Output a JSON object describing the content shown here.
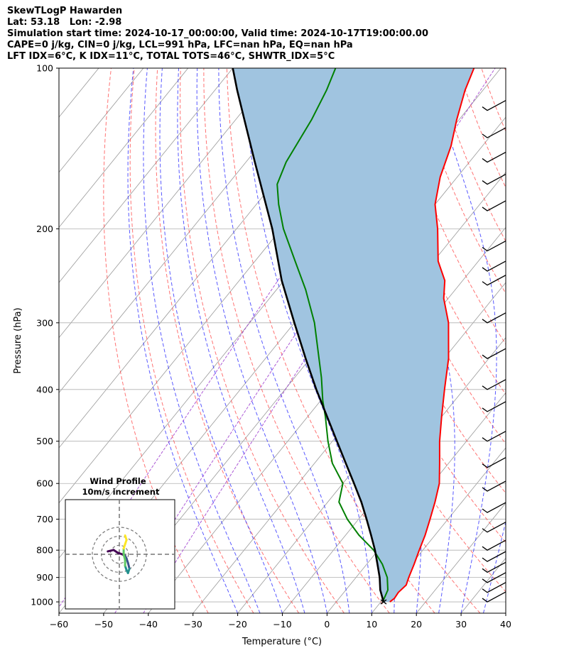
{
  "header": {
    "line1": "SkewTLogP Hawarden",
    "line2": "Lat: 53.18   Lon: -2.98",
    "line3": "Simulation start time: 2024-10-17_00:00:00, Valid time: 2024-10-17T19:00:00.00",
    "line4": "CAPE=0 j/kg, CIN=0 j/kg, LCL=991 hPa, LFC=nan hPa, EQ=nan hPa",
    "line5": "LFT IDX=6°C, K IDX=11°C, TOTAL TOTS=46°C, SHWTR_IDX=5°C"
  },
  "chart_data": {
    "type": "line",
    "title": "",
    "xlabel": "Temperature (°C)",
    "ylabel": "Pressure (hPa)",
    "xlim": [
      -60,
      40
    ],
    "ylim": [
      1050,
      100
    ],
    "y_scale": "log",
    "skew": true,
    "grid": true,
    "x_ticks": [
      "−60",
      "−50",
      "−40",
      "−30",
      "−20",
      "−10",
      "0",
      "10",
      "20",
      "30",
      "40"
    ],
    "y_ticks": [
      "1000",
      "900",
      "800",
      "700",
      "600",
      "500",
      "400",
      "300",
      "200",
      "100"
    ],
    "colors": {
      "temperature": "#ff0000",
      "dewpoint": "#008000",
      "parcel": "#000000",
      "shade": "#a0c4e0",
      "dry_adiabats": "#ff4444",
      "moist_adiabats": "#2222ff",
      "mixing_ratio": "#9933cc",
      "isotherms": "#999999"
    },
    "series": [
      {
        "key": "temperature",
        "points": [
          [
            1000,
            12
          ],
          [
            985,
            12.4
          ],
          [
            960,
            12.2
          ],
          [
            930,
            12.6
          ],
          [
            900,
            11.8
          ],
          [
            850,
            10.6
          ],
          [
            800,
            9.2
          ],
          [
            750,
            7.8
          ],
          [
            700,
            6.0
          ],
          [
            650,
            4.0
          ],
          [
            600,
            1.6
          ],
          [
            550,
            -2.0
          ],
          [
            500,
            -6.0
          ],
          [
            450,
            -10.0
          ],
          [
            400,
            -14.3
          ],
          [
            350,
            -19.0
          ],
          [
            300,
            -25.5
          ],
          [
            270,
            -31.0
          ],
          [
            250,
            -34.0
          ],
          [
            230,
            -39.0
          ],
          [
            200,
            -45.0
          ],
          [
            180,
            -50.0
          ],
          [
            160,
            -53.8
          ],
          [
            140,
            -57.0
          ],
          [
            125,
            -60.5
          ],
          [
            110,
            -64.0
          ],
          [
            100,
            -66.0
          ]
        ]
      },
      {
        "key": "dewpoint",
        "points": [
          [
            1000,
            10.4
          ],
          [
            950,
            9.4
          ],
          [
            900,
            7.0
          ],
          [
            850,
            3.5
          ],
          [
            800,
            -1.0
          ],
          [
            750,
            -7.0
          ],
          [
            700,
            -12.5
          ],
          [
            650,
            -17.5
          ],
          [
            600,
            -20.0
          ],
          [
            550,
            -26.0
          ],
          [
            500,
            -31.0
          ],
          [
            450,
            -36.0
          ],
          [
            420,
            -39.5
          ],
          [
            380,
            -44.0
          ],
          [
            350,
            -48.0
          ],
          [
            300,
            -55.5
          ],
          [
            260,
            -63.5
          ],
          [
            230,
            -71.0
          ],
          [
            200,
            -79.5
          ],
          [
            180,
            -85.0
          ],
          [
            165,
            -89.0
          ],
          [
            150,
            -91.0
          ],
          [
            125,
            -93.0
          ],
          [
            110,
            -95.0
          ],
          [
            100,
            -97.0
          ]
        ]
      },
      {
        "key": "parcel",
        "points": [
          [
            1000,
            10.6
          ],
          [
            950,
            7.7
          ],
          [
            900,
            5.3
          ],
          [
            850,
            2.4
          ],
          [
            800,
            -0.7
          ],
          [
            750,
            -4.3
          ],
          [
            700,
            -8.2
          ],
          [
            650,
            -12.5
          ],
          [
            600,
            -17.5
          ],
          [
            550,
            -23.0
          ],
          [
            500,
            -29.0
          ],
          [
            450,
            -35.6
          ],
          [
            400,
            -43.0
          ],
          [
            350,
            -51.0
          ],
          [
            300,
            -60.0
          ],
          [
            250,
            -70.5
          ],
          [
            200,
            -82.0
          ],
          [
            150,
            -98.0
          ],
          [
            125,
            -108.0
          ],
          [
            110,
            -115.0
          ],
          [
            100,
            -120.0
          ]
        ]
      }
    ],
    "wind_barbs": {
      "pressures": [
        1000,
        960,
        920,
        880,
        840,
        800,
        740,
        680,
        620,
        560,
        500,
        440,
        400,
        350,
        300,
        255,
        240,
        220,
        185,
        165,
        150,
        135,
        120
      ]
    },
    "hodograph": {
      "title": "Wind Profile",
      "subtitle": "10m/s increment",
      "rings_ms": [
        10,
        20,
        30
      ],
      "trace_u_v": [
        [
          -8,
          2
        ],
        [
          -4,
          3
        ],
        [
          -1,
          1
        ],
        [
          2,
          0
        ],
        [
          4,
          -1
        ],
        [
          5,
          -3
        ],
        [
          6,
          -6
        ],
        [
          7,
          -10
        ],
        [
          6,
          -13
        ],
        [
          5,
          -11
        ],
        [
          4,
          -8
        ],
        [
          4,
          -4
        ],
        [
          3,
          0
        ],
        [
          3,
          4
        ],
        [
          4,
          7
        ],
        [
          5,
          10
        ],
        [
          4,
          13
        ]
      ]
    }
  }
}
